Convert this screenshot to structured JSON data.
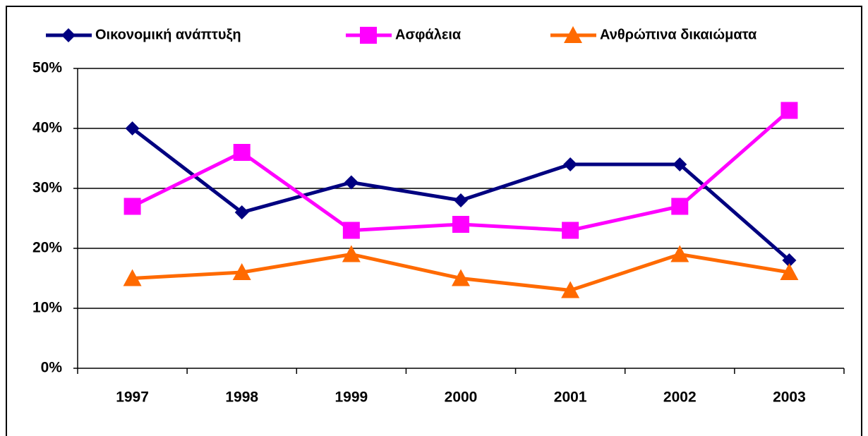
{
  "chart_data": {
    "type": "line",
    "categories": [
      "1997",
      "1998",
      "1999",
      "2000",
      "2001",
      "2002",
      "2003"
    ],
    "series": [
      {
        "name": "Οικονομική ανάπτυξη",
        "color": "#000080",
        "marker": "diamond",
        "values": [
          40,
          26,
          31,
          28,
          34,
          34,
          18
        ]
      },
      {
        "name": "Ασφάλεια",
        "color": "#ff00ff",
        "marker": "square",
        "values": [
          27,
          36,
          23,
          24,
          23,
          27,
          43
        ]
      },
      {
        "name": "Ανθρώπινα δικαιώματα",
        "color": "#ff6a00",
        "marker": "triangle",
        "values": [
          15,
          16,
          19,
          15,
          13,
          19,
          16
        ]
      }
    ],
    "ylim": [
      0,
      50
    ],
    "yticks": [
      {
        "value": 0,
        "label": "0%"
      },
      {
        "value": 10,
        "label": "10%"
      },
      {
        "value": 20,
        "label": "20%"
      },
      {
        "value": 30,
        "label": "30%"
      },
      {
        "value": 40,
        "label": "40%"
      },
      {
        "value": 50,
        "label": "50%"
      }
    ],
    "grid": true,
    "legend": "top"
  }
}
